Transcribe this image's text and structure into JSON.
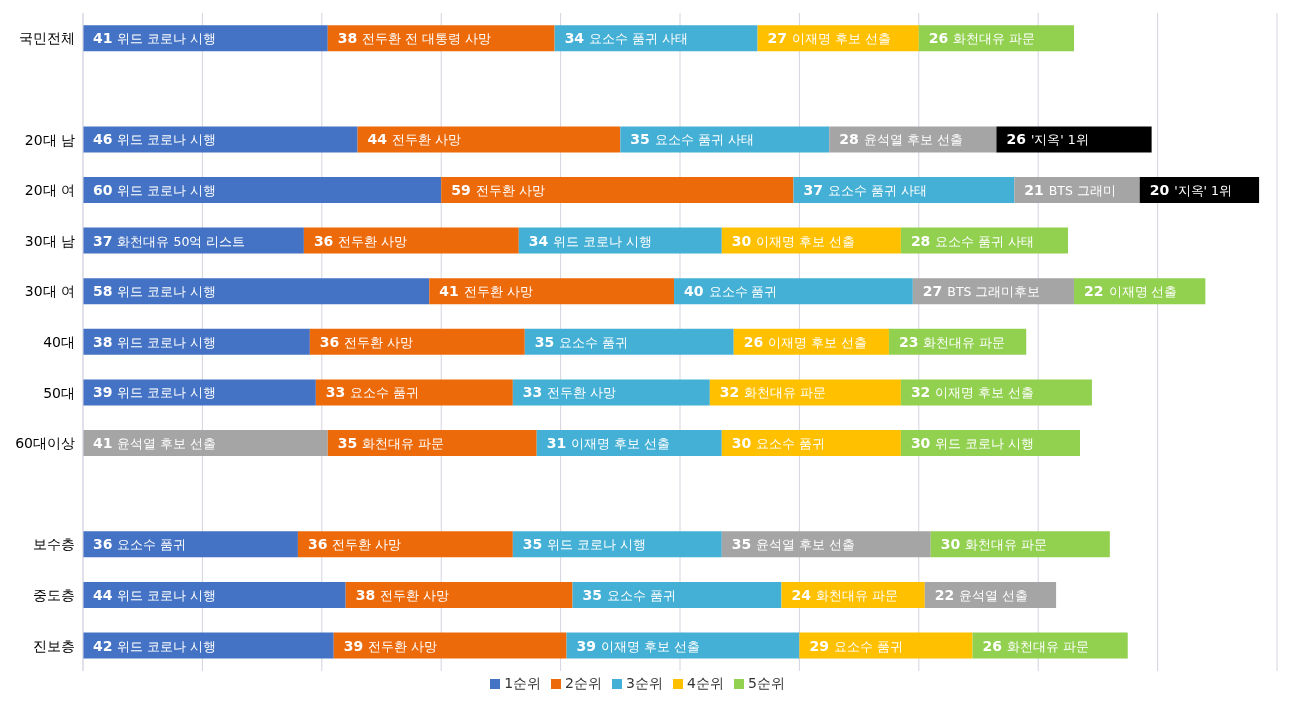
{
  "chart_data": {
    "type": "bar",
    "orientation": "horizontal",
    "stacked": true,
    "tick_labels": "y",
    "grid": "x",
    "legend": "bottom",
    "categories": [
      "국민전체",
      null,
      "20대 남",
      "20대 여",
      "30대 남",
      "30대 여",
      "40대",
      "50대",
      "60대이상",
      null,
      "보수층",
      "중도층",
      "진보층"
    ],
    "xlim": [
      0,
      200
    ],
    "series": [
      {
        "name": "1순위",
        "color": "#4472c4",
        "values": [
          41,
          null,
          46,
          60,
          37,
          58,
          38,
          39,
          41,
          null,
          36,
          44,
          42
        ],
        "colors": [
          "#4472c4",
          "#4472c4",
          "#4472c4",
          "#4472c4",
          "#4472c4",
          "#4472c4",
          "#4472c4",
          "#4472c4",
          "#a5a5a5",
          "#4472c4",
          "#4472c4",
          "#4472c4",
          "#4472c4"
        ],
        "value_labels": [
          "41 위드 코로나 시행",
          null,
          "46 위드 코로나 시행",
          "60 위드 코로나 시행",
          "37 화천대유 50억 리스트",
          "58 위드 코로나 시행",
          "38 위드 코로나 시행",
          "39 위드 코로나 시행",
          "41 윤석열 후보 선출",
          null,
          "36 요소수 품귀",
          "44 위드 코로나 시행",
          "42 위드 코로나 시행"
        ]
      },
      {
        "name": "2순위",
        "color": "#ed6a0b",
        "values": [
          38,
          null,
          44,
          59,
          36,
          41,
          36,
          33,
          35,
          null,
          36,
          38,
          39
        ],
        "colors": [
          "#ed6a0b",
          "#ed6a0b",
          "#ed6a0b",
          "#ed6a0b",
          "#ed6a0b",
          "#ed6a0b",
          "#ed6a0b",
          "#ed6a0b",
          "#ed6a0b",
          "#ed6a0b",
          "#ed6a0b",
          "#ed6a0b",
          "#ed6a0b"
        ],
        "value_labels": [
          "38 전두환 전 대통령 사망",
          null,
          "44 전두환 사망",
          "59 전두환 사망",
          "36 전두환 사망",
          "41 전두환 사망",
          "36 전두환 사망",
          "33 요소수 품귀",
          "35 화천대유 파문",
          null,
          "36 전두환 사망",
          "38 전두환 사망",
          "39 전두환 사망"
        ]
      },
      {
        "name": "3순위",
        "color": "#45b0d6",
        "values": [
          34,
          null,
          35,
          37,
          34,
          40,
          35,
          33,
          31,
          null,
          35,
          35,
          39
        ],
        "colors": [
          "#45b0d6",
          "#45b0d6",
          "#45b0d6",
          "#45b0d6",
          "#45b0d6",
          "#45b0d6",
          "#45b0d6",
          "#45b0d6",
          "#45b0d6",
          "#45b0d6",
          "#45b0d6",
          "#45b0d6",
          "#45b0d6"
        ],
        "value_labels": [
          "34 요소수 품귀 사태",
          null,
          "35 요소수 품귀 사태",
          "37 요소수 품귀 사태",
          "34 위드 코로나 시행",
          "40 요소수 품귀",
          "35 요소수 품귀",
          "33 전두환 사망",
          "31 이재명 후보 선출",
          null,
          "35 위드 코로나 시행",
          "35 요소수 품귀",
          "39 이재명 후보 선출"
        ]
      },
      {
        "name": "4순위",
        "color": "#ffc000",
        "values": [
          27,
          null,
          28,
          21,
          30,
          27,
          26,
          32,
          30,
          null,
          35,
          24,
          29
        ],
        "colors": [
          "#ffc000",
          "#ffc000",
          "#a5a5a5",
          "#a5a5a5",
          "#ffc000",
          "#a5a5a5",
          "#ffc000",
          "#ffc000",
          "#ffc000",
          "#ffc000",
          "#a5a5a5",
          "#ffc000",
          "#ffc000"
        ],
        "value_labels": [
          "27 이재명 후보 선출",
          null,
          "28 윤석열 후보 선출",
          "21 BTS 그래미",
          "30 이재명 후보 선출",
          "27 BTS 그래미후보",
          "26 이재명 후보 선출",
          "32 화천대유 파문",
          "30 요소수 품귀",
          null,
          "35 윤석열 후보 선출",
          "24 화천대유 파문",
          "29 요소수 품귀"
        ]
      },
      {
        "name": "5순위",
        "color": "#92d050",
        "values": [
          26,
          null,
          26,
          20,
          28,
          22,
          23,
          32,
          30,
          null,
          30,
          22,
          26
        ],
        "colors": [
          "#92d050",
          "#92d050",
          "#000000",
          "#000000",
          "#92d050",
          "#92d050",
          "#92d050",
          "#92d050",
          "#92d050",
          "#92d050",
          "#92d050",
          "#a5a5a5",
          "#92d050"
        ],
        "value_labels": [
          "26 화천대유 파문",
          null,
          "26 '지옥' 1위",
          "20 '지옥' 1위",
          "28 요소수 품귀 사태",
          "22 이재명 선출",
          "23 화천대유 파문",
          "32 이재명 후보 선출",
          "30 위드 코로나 시행",
          null,
          "30 화천대유 파문",
          "22 윤석열 선출",
          "26 화천대유 파문"
        ]
      }
    ]
  }
}
